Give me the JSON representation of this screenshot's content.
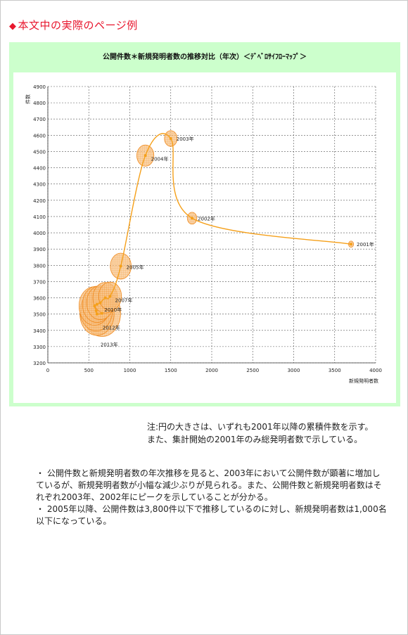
{
  "page": {
    "heading_marker": "◆",
    "heading": "本文中の実際のページ例"
  },
  "note": {
    "line1": "注:円の大きさは、いずれも2001年以降の累積件数を示す。",
    "line2": "また、集計開始の2001年のみ総発明者数で示している。"
  },
  "body": {
    "p1": "・ 公開件数と新規発明者数の年次推移を見ると、2003年において公開件数が顕著に増加しているが、新規発明者数が小幅な減少ぶりが見られる。また、公開件数と新規発明者数はそれぞれ2003年、2002年にピークを示していることが分かる。",
    "p2": "・ 2005年以降、公開件数は3,800件以下で推移しているのに対し、新規発明者数は1,000名以下になっている。"
  },
  "colors": {
    "heading": "#e8172e",
    "panel_bg": "#ccffcc",
    "line": "#f5a01a",
    "bubble_fill": "#f7c48a",
    "bubble_stroke": "#f08a1e",
    "grid": "#555555"
  },
  "chart_data": {
    "type": "scatter",
    "title": "公開件数＊新規発明者数の推移対比（年次）＜ﾃﾞﾍﾞﾛｻｲﾌﾛｰﾏｯﾌﾟ＞",
    "xlabel": "新規発明者数",
    "ylabel": "件数",
    "xlim": [
      0,
      4000
    ],
    "ylim": [
      3200,
      4900
    ],
    "x_ticks": [
      "0",
      "500",
      "1000",
      "1500",
      "2000",
      "2500",
      "3000",
      "3500",
      "4000"
    ],
    "y_ticks": [
      "3200",
      "3300",
      "3400",
      "3500",
      "3600",
      "3700",
      "3800",
      "3900",
      "4000",
      "4100",
      "4200",
      "4300",
      "4400",
      "4500",
      "4600",
      "4700",
      "4800",
      "4900"
    ],
    "grid": true,
    "connected": true,
    "points": [
      {
        "label": "2001年",
        "x": 3700,
        "y": 3930,
        "size": 0.8
      },
      {
        "label": "2002年",
        "x": 1760,
        "y": 4090,
        "size": 1.5
      },
      {
        "label": "2003年",
        "x": 1500,
        "y": 4580,
        "size": 2.0
      },
      {
        "label": "2004年",
        "x": 1190,
        "y": 4475,
        "size": 2.7
      },
      {
        "label": "2005年",
        "x": 890,
        "y": 3795,
        "size": 3.3
      },
      {
        "label": "2006年",
        "x": 760,
        "y": 3610,
        "size": 3.6
      },
      {
        "label": "2007年",
        "x": 700,
        "y": 3600,
        "size": 3.9
      },
      {
        "label": "2008年",
        "x": 640,
        "y": 3570,
        "size": 4.3
      },
      {
        "label": "2009年",
        "x": 600,
        "y": 3560,
        "size": 4.6
      },
      {
        "label": "2010年",
        "x": 570,
        "y": 3550,
        "size": 4.9
      },
      {
        "label": "2011年",
        "x": 590,
        "y": 3520,
        "size": 5.1
      },
      {
        "label": "2012年",
        "x": 600,
        "y": 3500,
        "size": 5.4
      },
      {
        "label": "2013年",
        "x": 660,
        "y": 3505,
        "size": 5.9
      }
    ],
    "point_labels": [
      {
        "text": "2001年"
      },
      {
        "text": "2002年"
      },
      {
        "text": "2003年"
      },
      {
        "text": "2004年"
      },
      {
        "text": "2005年"
      },
      {
        "text": "2007年"
      },
      {
        "text": "2010年"
      },
      {
        "text": "2012年"
      },
      {
        "text": "2013年"
      }
    ]
  }
}
